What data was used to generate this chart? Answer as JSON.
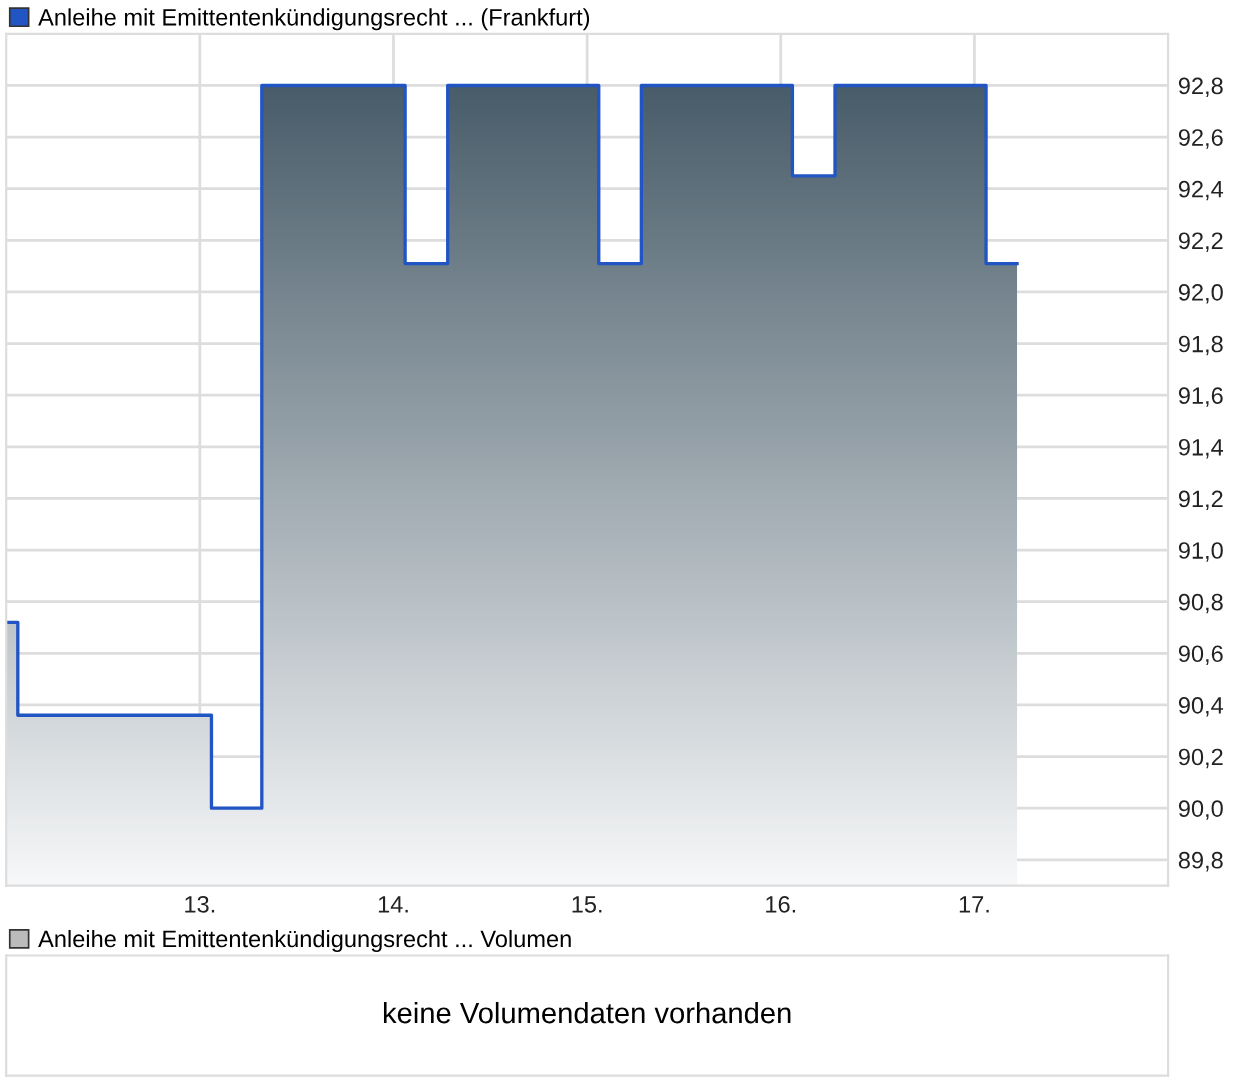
{
  "chart_data": [
    {
      "type": "step",
      "x": [
        12.0,
        12.06,
        13.06,
        13.32,
        14.06,
        14.28,
        15.06,
        15.28,
        16.06,
        16.28,
        17.06,
        17.22
      ],
      "series": [
        {
          "name": "Anleihe mit Emittentenkündigungsrecht ... (Frankfurt)",
          "color": "#2255c4",
          "values": [
            90.72,
            90.36,
            90.0,
            92.8,
            92.11,
            92.8,
            92.11,
            92.8,
            92.45,
            92.8,
            92.11,
            92.11
          ]
        }
      ],
      "xlim": [
        12.0,
        18.0
      ],
      "xticks": [
        {
          "value": 13,
          "label": "13."
        },
        {
          "value": 14,
          "label": "14."
        },
        {
          "value": 15,
          "label": "15."
        },
        {
          "value": 16,
          "label": "16."
        },
        {
          "value": 17,
          "label": "17."
        }
      ],
      "ylim": [
        89.7,
        93.0
      ],
      "yticks": [
        {
          "value": 89.8,
          "label": "89,8"
        },
        {
          "value": 90.0,
          "label": "90,0"
        },
        {
          "value": 90.2,
          "label": "90,2"
        },
        {
          "value": 90.4,
          "label": "90,4"
        },
        {
          "value": 90.6,
          "label": "90,6"
        },
        {
          "value": 90.8,
          "label": "90,8"
        },
        {
          "value": 91.0,
          "label": "91,0"
        },
        {
          "value": 91.2,
          "label": "91,2"
        },
        {
          "value": 91.4,
          "label": "91,4"
        },
        {
          "value": 91.6,
          "label": "91,6"
        },
        {
          "value": 91.8,
          "label": "91,8"
        },
        {
          "value": 92.0,
          "label": "92,0"
        },
        {
          "value": 92.2,
          "label": "92,2"
        },
        {
          "value": 92.4,
          "label": "92,4"
        },
        {
          "value": 92.6,
          "label": "92,6"
        },
        {
          "value": 92.8,
          "label": "92,8"
        }
      ],
      "grid": true,
      "legend": "top left"
    },
    {
      "type": "other",
      "title": "Anleihe mit Emittentenkündigungsrecht ... Volumen",
      "annotations": [
        "keine Volumendaten vorhanden"
      ]
    }
  ]
}
